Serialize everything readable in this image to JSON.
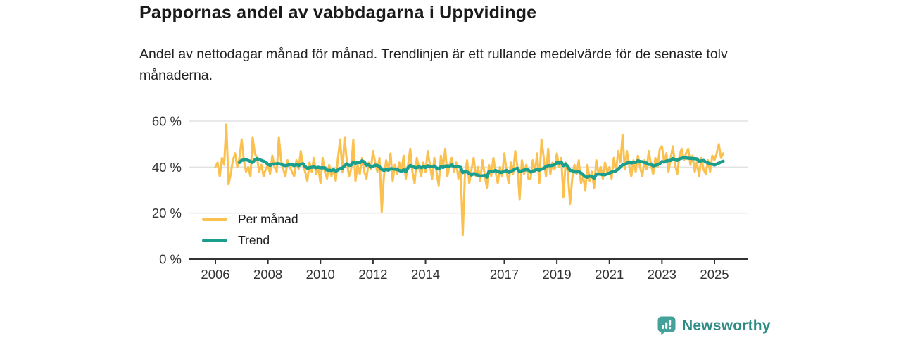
{
  "header": {
    "title": "Pappornas andel av vabbdagarna i Uppvidinge",
    "subtitle": "Andel av nettodagar månad för månad. Trendlinjen är ett rullande medelvärde för de senaste tolv månaderna."
  },
  "chart_data": {
    "type": "line",
    "title": "Pappornas andel av vabbdagarna i Uppvidinge",
    "ylabel": "",
    "xlabel": "",
    "unit": "%",
    "x_start": "2006-01",
    "x_end": "2025-05",
    "x_frequency": "monthly",
    "ylim": [
      0,
      62
    ],
    "grid": "horizontal",
    "legend_position": "inside-bottom-left",
    "y_ticks": [
      {
        "value": 0,
        "label": "0 %"
      },
      {
        "value": 20,
        "label": "20 %"
      },
      {
        "value": 40,
        "label": "40 %"
      },
      {
        "value": 60,
        "label": "60 %"
      }
    ],
    "x_ticks": [
      {
        "year": 2006,
        "label": "2006"
      },
      {
        "year": 2008,
        "label": "2008"
      },
      {
        "year": 2010,
        "label": "2010"
      },
      {
        "year": 2012,
        "label": "2012"
      },
      {
        "year": 2014,
        "label": "2014"
      },
      {
        "year": 2017,
        "label": "2017"
      },
      {
        "year": 2019,
        "label": "2019"
      },
      {
        "year": 2021,
        "label": "2021"
      },
      {
        "year": 2023,
        "label": "2023"
      },
      {
        "year": 2025,
        "label": "2025"
      }
    ],
    "series": [
      {
        "name": "Per månad",
        "color": "#FAC050",
        "values": [
          40,
          42,
          36,
          44,
          41,
          58.5,
          32.5,
          37,
          43,
          46,
          40,
          44,
          52,
          43,
          38,
          40,
          36,
          53,
          46,
          44,
          38,
          41,
          36,
          39,
          41,
          37,
          45,
          40,
          38,
          53,
          43,
          39,
          36,
          43,
          40,
          38,
          36,
          43,
          39,
          47,
          41,
          38,
          34,
          42,
          38,
          44,
          37,
          40,
          33,
          44,
          38,
          35,
          41,
          36,
          39,
          34,
          44,
          52,
          38,
          53,
          43,
          36,
          39,
          52,
          34,
          41,
          37,
          44,
          38,
          35,
          42,
          39,
          47,
          42,
          38,
          44,
          20.5,
          36,
          43,
          39,
          46,
          34,
          41,
          37,
          42,
          38,
          45,
          35,
          41,
          48,
          38,
          33,
          44,
          40,
          36,
          42,
          38,
          47,
          41,
          35,
          44,
          38,
          32,
          45,
          40,
          48,
          36,
          41,
          44,
          38,
          42,
          35,
          40,
          10.5,
          37,
          43,
          33,
          39,
          44,
          36,
          40,
          34,
          43,
          37,
          31,
          41,
          36,
          44,
          38,
          33,
          40,
          36,
          46,
          38,
          33,
          42,
          37,
          47,
          40,
          26,
          43,
          37,
          41,
          35,
          35,
          43,
          38,
          46,
          33,
          52,
          44,
          36,
          48,
          37,
          42,
          39,
          46,
          40,
          44,
          27,
          42,
          38,
          24,
          35,
          41,
          37,
          43,
          33,
          36,
          30,
          41,
          34,
          38,
          31,
          43,
          37,
          40,
          35,
          42,
          38,
          40,
          35,
          44,
          38,
          47,
          42,
          54,
          39,
          47,
          41,
          36,
          43,
          38,
          45,
          40,
          36,
          43,
          39,
          47,
          41,
          37,
          44,
          40,
          48,
          49,
          42,
          46,
          38,
          44,
          49,
          41,
          37,
          45,
          48,
          43,
          46,
          48,
          41,
          45,
          38,
          42,
          36,
          44,
          39,
          37,
          43,
          38,
          45,
          43,
          46,
          50,
          44,
          46
        ]
      },
      {
        "name": "Trend",
        "color": "#1B9E8C",
        "derivation": "rolling_mean",
        "window_months": 12
      }
    ]
  },
  "legend": {
    "items": [
      {
        "label": "Per månad",
        "color": "#FAC050"
      },
      {
        "label": "Trend",
        "color": "#1B9E8C"
      }
    ]
  },
  "footer": {
    "brand": "Newsworthy",
    "icon_color": "#45A29A",
    "text_color": "#2F8C85"
  },
  "colors": {
    "background": "#ffffff",
    "grid": "#e2e2e2",
    "axis": "#333333",
    "text": "#1d1d1d"
  }
}
